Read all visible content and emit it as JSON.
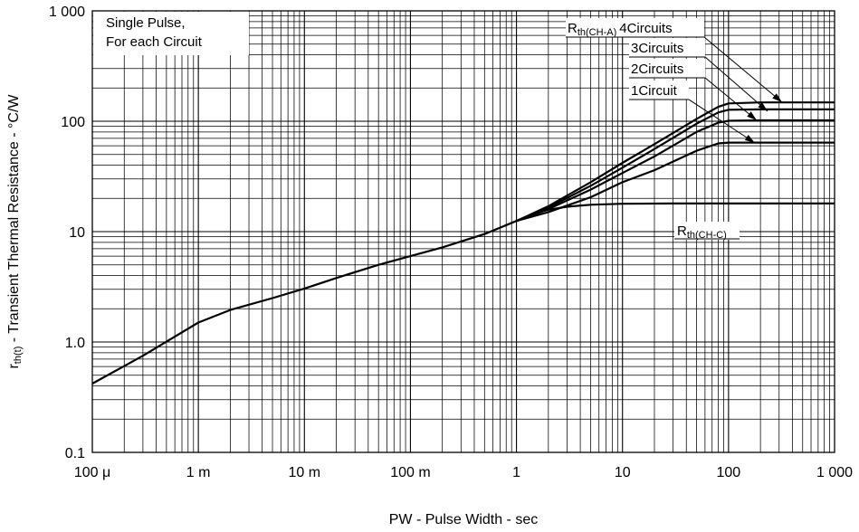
{
  "chart_data": {
    "type": "line",
    "xscale": "log",
    "yscale": "log",
    "xlim": [
      0.0001,
      1000
    ],
    "ylim": [
      0.1,
      1000
    ],
    "grid": true,
    "xlabel": "PW - Pulse Width - sec",
    "ylabel": {
      "main": "r",
      "sub": "th(t)",
      "rest": " - Transient Thermal Resistance - °C/W"
    },
    "x_ticks": [
      {
        "value": 0.0001,
        "label": "100 μ"
      },
      {
        "value": 0.001,
        "label": "1 m"
      },
      {
        "value": 0.01,
        "label": "10 m"
      },
      {
        "value": 0.1,
        "label": "100 m"
      },
      {
        "value": 1,
        "label": "1"
      },
      {
        "value": 10,
        "label": "10"
      },
      {
        "value": 100,
        "label": "100"
      },
      {
        "value": 1000,
        "label": "1 000"
      }
    ],
    "y_ticks": [
      {
        "value": 0.1,
        "label": "0.1"
      },
      {
        "value": 1,
        "label": "1.0"
      },
      {
        "value": 10,
        "label": "10"
      },
      {
        "value": 100,
        "label": "100"
      },
      {
        "value": 1000,
        "label": "1 000"
      }
    ],
    "condition_note": [
      "Single Pulse,",
      "For each Circuit"
    ],
    "common_curve": {
      "x": [
        0.0001,
        0.0003,
        0.001,
        0.002,
        0.005,
        0.01,
        0.02,
        0.05,
        0.1,
        0.2,
        0.5,
        1
      ],
      "y": [
        0.42,
        0.75,
        1.5,
        1.95,
        2.5,
        3.05,
        3.8,
        5.0,
        6.0,
        7.2,
        9.5,
        12.5
      ]
    },
    "series": [
      {
        "name": "4Circuits",
        "prefix": "R",
        "prefix_sub": "th(CH-A)",
        "x": [
          1,
          2,
          5,
          10,
          20,
          50,
          80,
          100,
          200,
          1000
        ],
        "y": [
          12.5,
          17,
          28,
          42,
          62,
          105,
          135,
          145,
          148,
          148
        ]
      },
      {
        "name": "3Circuits",
        "x": [
          1,
          2,
          5,
          10,
          20,
          50,
          80,
          100,
          200,
          1000
        ],
        "y": [
          12.5,
          16.5,
          26,
          38,
          56,
          95,
          120,
          127,
          128,
          128
        ]
      },
      {
        "name": "2Circuits",
        "x": [
          1,
          2,
          5,
          10,
          20,
          50,
          80,
          100,
          200,
          1000
        ],
        "y": [
          12.5,
          16,
          24,
          34,
          48,
          80,
          97,
          101,
          102,
          102
        ]
      },
      {
        "name": "1Circuit",
        "x": [
          1,
          2,
          5,
          10,
          20,
          50,
          80,
          100,
          200,
          1000
        ],
        "y": [
          12.5,
          15,
          20.5,
          28,
          36,
          54,
          63,
          64,
          64,
          64
        ]
      },
      {
        "name": "",
        "prefix": "R",
        "prefix_sub": "th(CH-C)",
        "x": [
          1,
          1.5,
          2,
          3,
          5,
          10,
          30,
          100,
          1000
        ],
        "y": [
          12.5,
          14.5,
          15.8,
          16.8,
          17.5,
          17.9,
          18,
          18,
          18
        ]
      }
    ]
  }
}
